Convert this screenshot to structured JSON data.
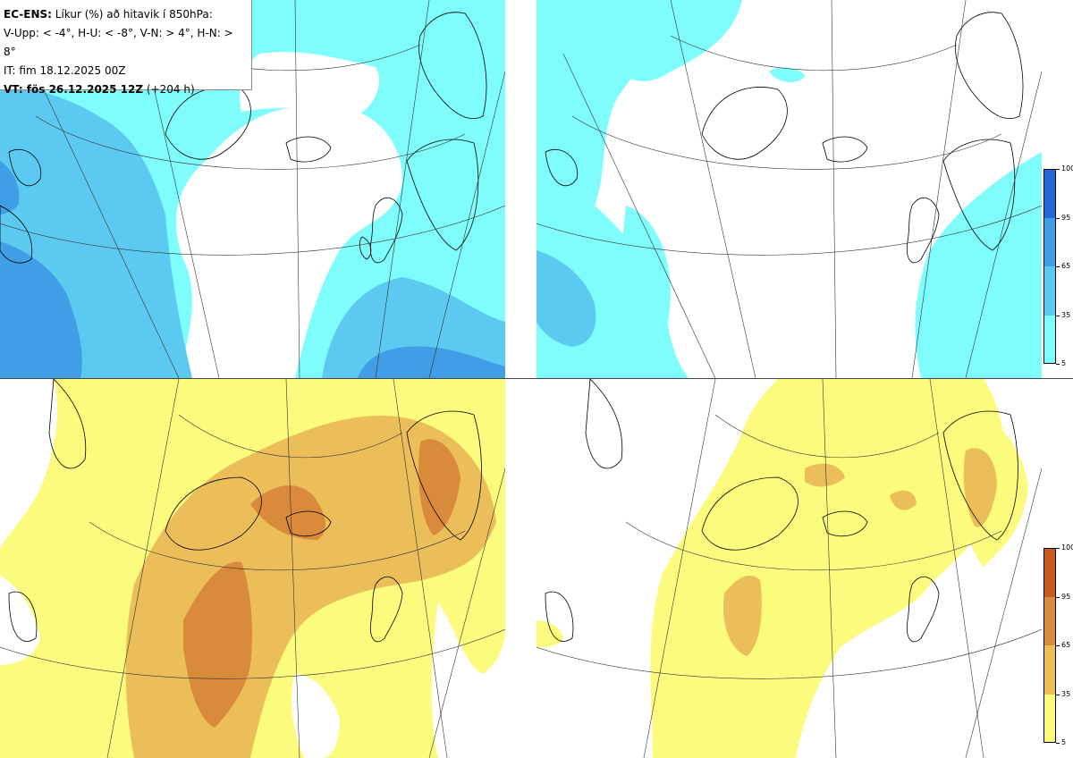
{
  "info": {
    "line1_bold": "EC-ENS:",
    "line1_rest": " Líkur (%) að hitavik í 850hPa:",
    "line2": "V-Upp: < -4°, H-U: < -8°, V-N: > 4°, H-N: > 8°",
    "line3": "IT: fim 18.12.2025 00Z",
    "line4_bold": "VT: fös 26.12.2025 12Z",
    "line4_rest": " (+204 h)"
  },
  "colors": {
    "cold": [
      "#7ffcfc",
      "#5cc9f0",
      "#3f9ee6",
      "#2466d4"
    ],
    "warm": [
      "#fbfb7d",
      "#ebbe5a",
      "#d98a3a",
      "#c45a1e"
    ]
  },
  "panels": [
    {
      "name": "V-Upp",
      "scheme": "cold",
      "ticks": [
        "100",
        "95",
        "65",
        "35",
        "5"
      ]
    },
    {
      "name": "H-U",
      "scheme": "cold",
      "ticks": [
        "100",
        "95",
        "65",
        "35",
        "5"
      ]
    },
    {
      "name": "V-N",
      "scheme": "warm",
      "ticks": [
        "100",
        "95",
        "65",
        "35",
        "5"
      ]
    },
    {
      "name": "H-N",
      "scheme": "warm",
      "ticks": [
        "100",
        "95",
        "65",
        "35",
        "5"
      ]
    }
  ]
}
